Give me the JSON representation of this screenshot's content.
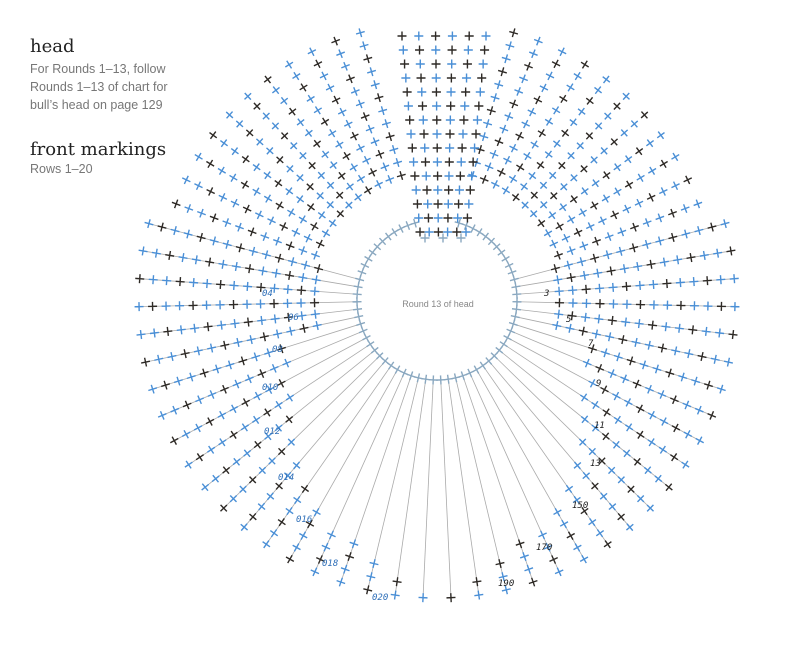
{
  "legend": {
    "head": {
      "title": "head",
      "lines": [
        "For Rounds 1–13, follow",
        "Rounds 1–13 of chart for",
        "bull’s head on page 129"
      ]
    },
    "front": {
      "title": "front markings",
      "lines": [
        "Rows 1–20"
      ]
    }
  },
  "center_label": "Round 13 of head",
  "row_labels_left": [
    "04",
    "06",
    "08",
    "010",
    "012",
    "014",
    "016",
    "018",
    "020"
  ],
  "row_labels_right": [
    "3",
    "5",
    "7",
    "9",
    "11",
    "13",
    "150",
    "170",
    "190"
  ]
}
